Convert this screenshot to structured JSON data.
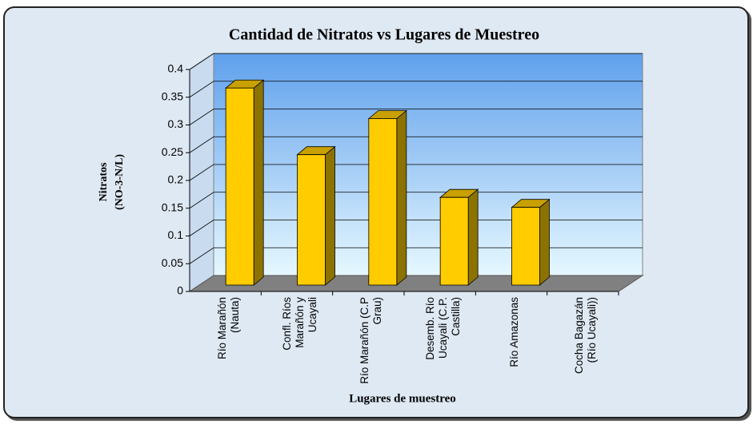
{
  "chart_data": {
    "type": "bar3d",
    "title": "Cantidad de Nitratos vs Lugares de Muestreo",
    "y_label": [
      "Nitratos",
      "(NO-3-N/L)"
    ],
    "x_label": "Lugares de muestreo",
    "categories": [
      "Río Marañón (Nauta)",
      "Confl. Ríos Marañón y Ucayali",
      "Río Marañón (C.P Grau)",
      "Desemb. Río Ucayali (C.P. Castilla)",
      "Río Amazonas",
      "Cocha Bagazán (Río Ucayali))"
    ],
    "values": [
      0.355,
      0.235,
      0.3,
      0.158,
      0.14,
      0
    ],
    "color": "#ffcc00",
    "ylim": [
      0,
      0.4
    ],
    "yticks": [
      0,
      0.05,
      0.1,
      0.15,
      0.2,
      0.25,
      0.3,
      0.35,
      0.4
    ],
    "grid": true
  }
}
